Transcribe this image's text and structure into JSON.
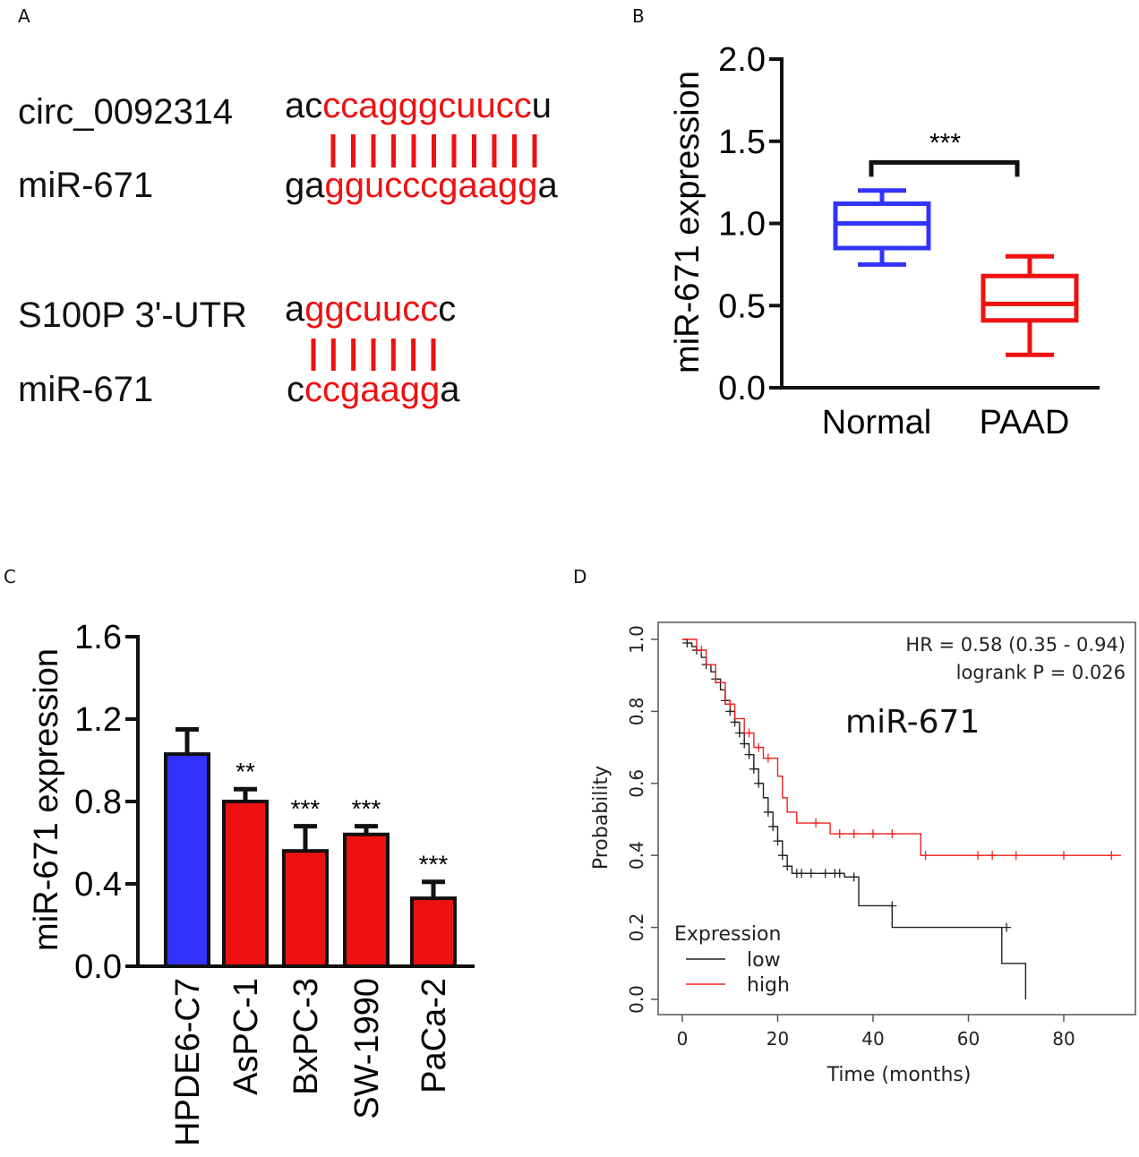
{
  "panels": {
    "a": "A",
    "b": "B",
    "c": "C",
    "d": "D"
  },
  "colors": {
    "red": "#ee1111",
    "blue": "#3333ff",
    "black": "#111111",
    "km_high": "#ee2222",
    "km_low": "#222222"
  },
  "panel_a": {
    "pairs": [
      {
        "top_name": "circ_0092314",
        "top_seq": [
          {
            "t": "ac",
            "red": false
          },
          {
            "t": "ccagggcuucc",
            "red": true
          },
          {
            "t": "u",
            "red": false
          }
        ],
        "bottom_name": "miR-671",
        "bottom_seq": [
          {
            "t": "ga",
            "red": false
          },
          {
            "t": "ggucccgaagg",
            "red": true
          },
          {
            "t": "a",
            "red": false
          }
        ],
        "bonds": 11
      },
      {
        "top_name": "S100P 3'-UTR",
        "top_seq": [
          {
            "t": "a",
            "red": false
          },
          {
            "t": "ggcuucc",
            "red": true
          },
          {
            "t": "c",
            "red": false
          }
        ],
        "bottom_name": "miR-671",
        "bottom_seq": [
          {
            "t": "c",
            "red": false
          },
          {
            "t": "ccgaagg",
            "red": true
          },
          {
            "t": "a",
            "red": false
          }
        ],
        "bonds": 7
      }
    ]
  },
  "chart_data": [
    {
      "panel": "B",
      "type": "box",
      "ylabel": "miR-671 expression",
      "ylim": [
        0,
        2.0
      ],
      "yticks": [
        "0.0",
        "0.5",
        "1.0",
        "1.5",
        "2.0"
      ],
      "categories": [
        "Normal",
        "PAAD"
      ],
      "boxes": [
        {
          "name": "Normal",
          "min": 0.75,
          "q1": 0.85,
          "median": 1.0,
          "q3": 1.12,
          "max": 1.2,
          "color": "#3333ff"
        },
        {
          "name": "PAAD",
          "min": 0.2,
          "q1": 0.41,
          "median": 0.51,
          "q3": 0.68,
          "max": 0.8,
          "color": "#ee1111"
        }
      ],
      "significance": {
        "label": "***",
        "between": [
          "Normal",
          "PAAD"
        ],
        "y": 1.48
      }
    },
    {
      "panel": "C",
      "type": "bar",
      "ylabel": "miR-671 expression",
      "ylim": [
        0,
        1.6
      ],
      "yticks": [
        "0.0",
        "0.4",
        "0.8",
        "1.2",
        "1.6"
      ],
      "categories": [
        "HPDE6-C7",
        "AsPC-1",
        "BxPC-3",
        "SW-1990",
        "PaCa-2"
      ],
      "values": [
        1.03,
        0.8,
        0.56,
        0.64,
        0.33
      ],
      "errors": [
        0.12,
        0.06,
        0.12,
        0.04,
        0.08
      ],
      "significance": [
        "",
        "**",
        "***",
        "***",
        "***"
      ],
      "bar_colors": [
        "#3333ff",
        "#ee1111",
        "#ee1111",
        "#ee1111",
        "#ee1111"
      ]
    },
    {
      "panel": "D",
      "type": "line",
      "title": "miR-671",
      "xlabel": "Time (months)",
      "ylabel": "Probability",
      "xlim": [
        0,
        95
      ],
      "ylim": [
        0,
        1.0
      ],
      "xticks": [
        "0",
        "20",
        "40",
        "60",
        "80"
      ],
      "yticks": [
        "0.0",
        "0.2",
        "0.4",
        "0.6",
        "0.8",
        "1.0"
      ],
      "annotation_hr": "HR = 0.58 (0.35 - 0.94)",
      "annotation_p": "logrank P = 0.026",
      "legend_title": "Expression",
      "series": [
        {
          "name": "low",
          "color": "#222222",
          "steps": [
            [
              0,
              1.0
            ],
            [
              1,
              0.99
            ],
            [
              2,
              0.98
            ],
            [
              3,
              0.97
            ],
            [
              4,
              0.95
            ],
            [
              5,
              0.93
            ],
            [
              6,
              0.91
            ],
            [
              7,
              0.89
            ],
            [
              8,
              0.86
            ],
            [
              9,
              0.83
            ],
            [
              10,
              0.8
            ],
            [
              11,
              0.77
            ],
            [
              12,
              0.74
            ],
            [
              13,
              0.71
            ],
            [
              14,
              0.68
            ],
            [
              15,
              0.64
            ],
            [
              16,
              0.6
            ],
            [
              17,
              0.56
            ],
            [
              18,
              0.52
            ],
            [
              19,
              0.48
            ],
            [
              20,
              0.44
            ],
            [
              21,
              0.4
            ],
            [
              22,
              0.37
            ],
            [
              23,
              0.35
            ],
            [
              34,
              0.34
            ],
            [
              37,
              0.26
            ],
            [
              44,
              0.2
            ],
            [
              67,
              0.1
            ],
            [
              72,
              0.0
            ]
          ],
          "censors": [
            [
              1,
              0.99
            ],
            [
              3,
              0.97
            ],
            [
              5,
              0.93
            ],
            [
              7,
              0.89
            ],
            [
              9,
              0.83
            ],
            [
              10,
              0.8
            ],
            [
              11,
              0.77
            ],
            [
              12,
              0.74
            ],
            [
              13,
              0.71
            ],
            [
              14,
              0.68
            ],
            [
              15,
              0.64
            ],
            [
              16,
              0.6
            ],
            [
              18,
              0.52
            ],
            [
              19,
              0.48
            ],
            [
              20,
              0.44
            ],
            [
              21,
              0.4
            ],
            [
              22,
              0.37
            ],
            [
              24,
              0.35
            ],
            [
              25,
              0.35
            ],
            [
              27,
              0.35
            ],
            [
              30,
              0.35
            ],
            [
              32,
              0.35
            ],
            [
              33,
              0.35
            ],
            [
              36,
              0.34
            ],
            [
              44,
              0.26
            ],
            [
              68,
              0.2
            ]
          ]
        },
        {
          "name": "high",
          "color": "#ee2222",
          "steps": [
            [
              0,
              1.0
            ],
            [
              3,
              0.97
            ],
            [
              5,
              0.93
            ],
            [
              7,
              0.88
            ],
            [
              9,
              0.82
            ],
            [
              11,
              0.78
            ],
            [
              13,
              0.74
            ],
            [
              15,
              0.7
            ],
            [
              17,
              0.67
            ],
            [
              20,
              0.62
            ],
            [
              21,
              0.56
            ],
            [
              22,
              0.52
            ],
            [
              24,
              0.49
            ],
            [
              31,
              0.46
            ],
            [
              50,
              0.4
            ],
            [
              92,
              0.4
            ]
          ],
          "censors": [
            [
              4,
              0.97
            ],
            [
              10,
              0.82
            ],
            [
              14,
              0.74
            ],
            [
              16,
              0.7
            ],
            [
              18,
              0.67
            ],
            [
              28,
              0.49
            ],
            [
              33,
              0.46
            ],
            [
              36,
              0.46
            ],
            [
              40,
              0.46
            ],
            [
              44,
              0.46
            ],
            [
              51,
              0.4
            ],
            [
              62,
              0.4
            ],
            [
              65,
              0.4
            ],
            [
              70,
              0.4
            ],
            [
              80,
              0.4
            ],
            [
              90,
              0.4
            ]
          ]
        }
      ]
    }
  ]
}
